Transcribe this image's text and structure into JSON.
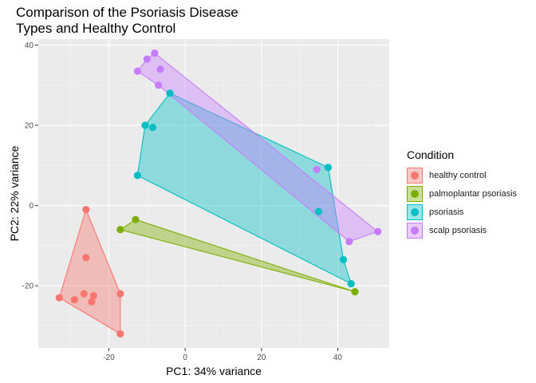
{
  "chart_data": {
    "type": "scatter",
    "title": "Comparison of the Psoriasis Disease\nTypes and Healthy Control",
    "xlabel": "PC1: 34% variance",
    "ylabel": "PC2: 22% variance",
    "xlim": [
      -38.5,
      53.5
    ],
    "ylim": [
      -35.5,
      41.5
    ],
    "x_ticks": [
      -20,
      0,
      20,
      40
    ],
    "y_ticks": [
      -20,
      0,
      20,
      40
    ],
    "grid": true,
    "legend_title": "Condition",
    "legend_position": "right",
    "series": [
      {
        "name": "healthy control",
        "color": "#F8766D",
        "points": [
          [
            -26,
            -1
          ],
          [
            -26,
            -13
          ],
          [
            -33,
            -23
          ],
          [
            -29,
            -23.5
          ],
          [
            -26.5,
            -22
          ],
          [
            -24.5,
            -24
          ],
          [
            -24,
            -22.5
          ],
          [
            -17,
            -22
          ],
          [
            -17,
            -32
          ]
        ],
        "hull": [
          [
            -26,
            -1
          ],
          [
            -17,
            -22
          ],
          [
            -17,
            -32
          ],
          [
            -33,
            -23
          ]
        ]
      },
      {
        "name": "palmoplantar psoriasis",
        "color": "#7CAE00",
        "points": [
          [
            -13,
            -3.5
          ],
          [
            -17,
            -6
          ],
          [
            44.5,
            -21.5
          ]
        ],
        "hull": [
          [
            -13,
            -3.5
          ],
          [
            44.5,
            -21.5
          ],
          [
            -17,
            -6
          ]
        ]
      },
      {
        "name": "psoriasis",
        "color": "#00BFC4",
        "points": [
          [
            -4,
            28
          ],
          [
            -10.5,
            20
          ],
          [
            -8.5,
            19.5
          ],
          [
            -12.5,
            7.5
          ],
          [
            37.5,
            9.5
          ],
          [
            35,
            -1.5
          ],
          [
            41.5,
            -13.5
          ],
          [
            43.5,
            -19.5
          ]
        ],
        "hull": [
          [
            -4,
            28
          ],
          [
            37.5,
            9.5
          ],
          [
            41.5,
            -13.5
          ],
          [
            43.5,
            -19.5
          ],
          [
            -12.5,
            7.5
          ],
          [
            -10.5,
            20
          ]
        ]
      },
      {
        "name": "scalp psoriasis",
        "color": "#C77CFF",
        "points": [
          [
            -8,
            38
          ],
          [
            -10,
            36.5
          ],
          [
            -12.5,
            33.5
          ],
          [
            -6.5,
            34
          ],
          [
            -7,
            30
          ],
          [
            34.5,
            9
          ],
          [
            43,
            -9
          ],
          [
            50.5,
            -6.5
          ]
        ],
        "hull": [
          [
            -12.5,
            33.5
          ],
          [
            -10,
            36.5
          ],
          [
            -8,
            38
          ],
          [
            50.5,
            -6.5
          ],
          [
            43,
            -9
          ],
          [
            -7,
            30
          ]
        ]
      }
    ]
  }
}
